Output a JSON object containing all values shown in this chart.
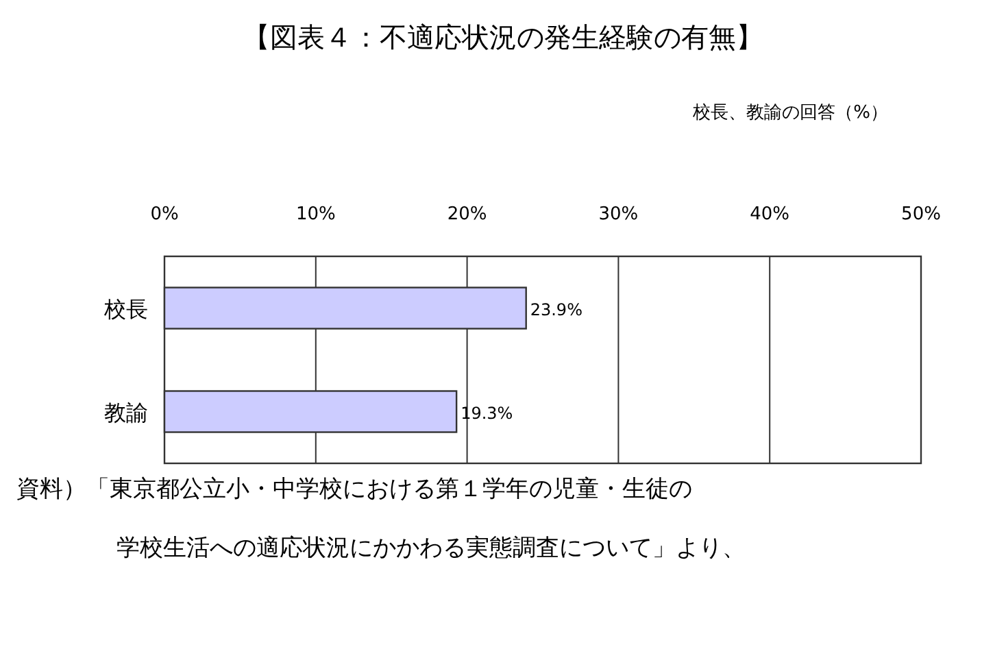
{
  "chart_data": {
    "type": "bar",
    "orientation": "horizontal",
    "title": "【図表４：不適応状況の発生経験の有無】",
    "subtitle": "校長、教諭の回答（%）",
    "categories": [
      "校長",
      "教諭"
    ],
    "values": [
      23.9,
      19.3
    ],
    "color": "#ccccff",
    "value_labels": [
      "23.9%",
      "19.3%"
    ],
    "xlim": [
      0,
      50
    ],
    "xticks": [
      {
        "value": 0,
        "label": "0%"
      },
      {
        "value": 10,
        "label": "10%"
      },
      {
        "value": 20,
        "label": "20%"
      },
      {
        "value": 30,
        "label": "30%"
      },
      {
        "value": 40,
        "label": "40%"
      },
      {
        "value": 50,
        "label": "50%"
      }
    ],
    "grid": "x",
    "annotations": [
      "資料）「東京都公立小・中学校における第１学年の児童・生徒の",
      "学校生活への適応状況にかかわる実態調査について」より、"
    ]
  }
}
